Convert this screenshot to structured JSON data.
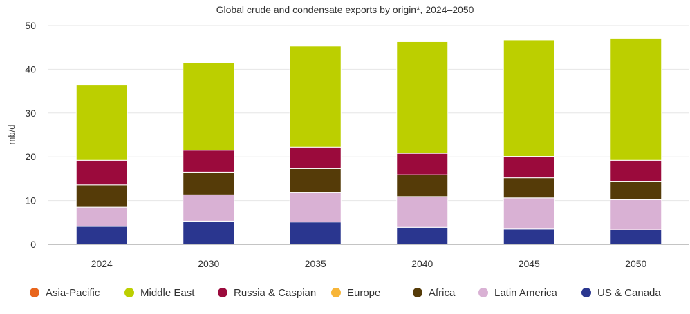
{
  "chart_data": {
    "type": "bar",
    "stacked": true,
    "title": "Global crude and condensate exports by origin*, 2024–2050",
    "ylabel": "mb/d",
    "xlabel": "",
    "ylim": [
      0,
      50
    ],
    "yticks": [
      0,
      10,
      20,
      30,
      40,
      50
    ],
    "grid": true,
    "legend_position": "bottom",
    "categories": [
      "2024",
      "2030",
      "2035",
      "2040",
      "2045",
      "2050"
    ],
    "series": [
      {
        "name": "Asia-Pacific",
        "color": "#e8651c",
        "values": [
          0,
          0,
          0,
          0,
          0,
          0
        ]
      },
      {
        "name": "Middle East",
        "color": "#bccf00",
        "values": [
          17.3,
          20.0,
          23.1,
          25.5,
          26.6,
          27.9
        ]
      },
      {
        "name": "Russia & Caspian",
        "color": "#9b0a3c",
        "values": [
          5.6,
          5.0,
          4.9,
          4.9,
          4.9,
          4.9
        ]
      },
      {
        "name": "Europe",
        "color": "#f7b538",
        "values": [
          0,
          0,
          0,
          0,
          0,
          0
        ]
      },
      {
        "name": "Africa",
        "color": "#553b08",
        "values": [
          5.1,
          5.2,
          5.4,
          5.0,
          4.6,
          4.1
        ]
      },
      {
        "name": "Latin America",
        "color": "#d9b1d4",
        "values": [
          4.4,
          6.0,
          6.8,
          7.0,
          7.1,
          6.9
        ]
      },
      {
        "name": "US & Canada",
        "color": "#2a368f",
        "values": [
          4.1,
          5.3,
          5.1,
          3.9,
          3.5,
          3.3
        ]
      }
    ],
    "stack_order": [
      "US & Canada",
      "Latin America",
      "Africa",
      "Europe",
      "Russia & Caspian",
      "Middle East",
      "Asia-Pacific"
    ]
  }
}
